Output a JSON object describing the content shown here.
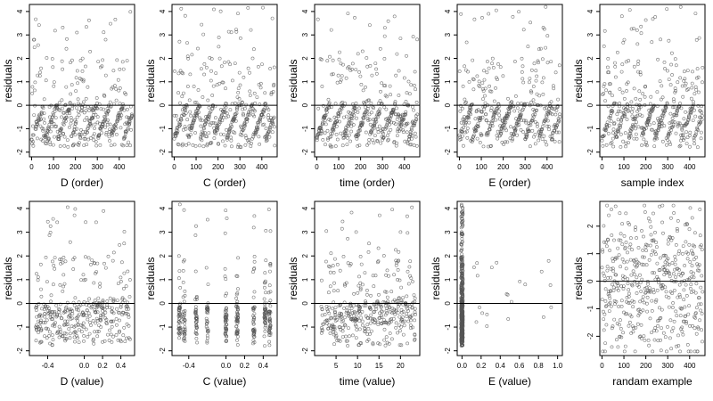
{
  "chart_data": [
    {
      "type": "scatter",
      "xlabel": "D (order)",
      "ylabel": "residuals",
      "xlim": [
        -10,
        470
      ],
      "ylim": [
        -2.2,
        4.3
      ],
      "xticks": [
        "0",
        "100",
        "200",
        "300",
        "400"
      ],
      "xtick_values": [
        0,
        100,
        200,
        300,
        400
      ],
      "yticks": [
        "-2",
        "-1",
        "0",
        "1",
        "2",
        "3",
        "4"
      ],
      "ytick_values": [
        -2,
        -1,
        0,
        1,
        2,
        3,
        4
      ],
      "hline": 0,
      "pattern": "ordered",
      "seed": 11,
      "n": 460
    },
    {
      "type": "scatter",
      "xlabel": "C (order)",
      "ylabel": "residuals",
      "xlim": [
        -10,
        470
      ],
      "ylim": [
        -2.2,
        4.3
      ],
      "xticks": [
        "0",
        "100",
        "200",
        "300",
        "400"
      ],
      "xtick_values": [
        0,
        100,
        200,
        300,
        400
      ],
      "yticks": [
        "-2",
        "-1",
        "0",
        "1",
        "2",
        "3",
        "4"
      ],
      "ytick_values": [
        -2,
        -1,
        0,
        1,
        2,
        3,
        4
      ],
      "hline": 0,
      "pattern": "ordered",
      "seed": 23,
      "n": 460
    },
    {
      "type": "scatter",
      "xlabel": "time (order)",
      "ylabel": "residuals",
      "xlim": [
        -10,
        470
      ],
      "ylim": [
        -2.2,
        4.3
      ],
      "xticks": [
        "0",
        "100",
        "200",
        "300",
        "400"
      ],
      "xtick_values": [
        0,
        100,
        200,
        300,
        400
      ],
      "yticks": [
        "-2",
        "-1",
        "0",
        "1",
        "2",
        "3",
        "4"
      ],
      "ytick_values": [
        -2,
        -1,
        0,
        1,
        2,
        3,
        4
      ],
      "hline": 0,
      "pattern": "ordered",
      "seed": 37,
      "n": 460
    },
    {
      "type": "scatter",
      "xlabel": "E (order)",
      "ylabel": "residuals",
      "xlim": [
        -10,
        470
      ],
      "ylim": [
        -2.2,
        4.3
      ],
      "xticks": [
        "0",
        "100",
        "200",
        "300",
        "400"
      ],
      "xtick_values": [
        0,
        100,
        200,
        300,
        400
      ],
      "yticks": [
        "-2",
        "-1",
        "0",
        "1",
        "2",
        "3",
        "4"
      ],
      "ytick_values": [
        -2,
        -1,
        0,
        1,
        2,
        3,
        4
      ],
      "hline": 0,
      "pattern": "ordered",
      "seed": 41,
      "n": 460
    },
    {
      "type": "scatter",
      "xlabel": "sample index",
      "ylabel": "residuals",
      "xlim": [
        -10,
        470
      ],
      "ylim": [
        -2.2,
        4.3
      ],
      "xticks": [
        "0",
        "100",
        "200",
        "300",
        "400"
      ],
      "xtick_values": [
        0,
        100,
        200,
        300,
        400
      ],
      "yticks": [
        "-2",
        "-1",
        "0",
        "1",
        "2",
        "3",
        "4"
      ],
      "ytick_values": [
        -2,
        -1,
        0,
        1,
        2,
        3,
        4
      ],
      "hline": 0,
      "pattern": "ordered",
      "seed": 53,
      "n": 460
    },
    {
      "type": "scatter",
      "xlabel": "D (value)",
      "ylabel": "residuals",
      "xlim": [
        -0.6,
        0.55
      ],
      "ylim": [
        -2.2,
        4.3
      ],
      "xticks": [
        "-0.4",
        "0.0",
        "0.2",
        "0.4"
      ],
      "xtick_values": [
        -0.4,
        0,
        0.2,
        0.4
      ],
      "yticks": [
        "-2",
        "-1",
        "0",
        "1",
        "2",
        "3",
        "4"
      ],
      "ytick_values": [
        -2,
        -1,
        0,
        1,
        2,
        3,
        4
      ],
      "hline": 0,
      "pattern": "value-spread",
      "seed": 61,
      "n": 380
    },
    {
      "type": "scatter",
      "xlabel": "C (value)",
      "ylabel": "residuals",
      "xlim": [
        -0.58,
        0.55
      ],
      "ylim": [
        -2.2,
        4.3
      ],
      "xticks": [
        "-0.4",
        "0.0",
        "0.2",
        "0.4"
      ],
      "xtick_values": [
        -0.4,
        0,
        0.2,
        0.4
      ],
      "yticks": [
        "-2",
        "-1",
        "0",
        "1",
        "2",
        "3",
        "4"
      ],
      "ytick_values": [
        -2,
        -1,
        0,
        1,
        2,
        3,
        4
      ],
      "hline": 0,
      "pattern": "value-columns",
      "columns": [
        -0.5,
        -0.45,
        -0.32,
        -0.2,
        0.0,
        0.12,
        0.3,
        0.42,
        0.47
      ],
      "seed": 71,
      "n": 380
    },
    {
      "type": "scatter",
      "xlabel": "time (value)",
      "ylabel": "residuals",
      "xlim": [
        0,
        24.5
      ],
      "ylim": [
        -2.2,
        4.3
      ],
      "xticks": [
        "5",
        "10",
        "15",
        "20"
      ],
      "xtick_values": [
        5,
        10,
        15,
        20
      ],
      "yticks": [
        "-2",
        "-1",
        "0",
        "1",
        "2",
        "3",
        "4"
      ],
      "ytick_values": [
        -2,
        -1,
        0,
        1,
        2,
        3,
        4
      ],
      "hline": 0,
      "pattern": "value-spread",
      "seed": 83,
      "n": 400
    },
    {
      "type": "scatter",
      "xlabel": "E (value)",
      "ylabel": "residuals",
      "xlim": [
        -0.05,
        1.05
      ],
      "ylim": [
        -2.2,
        4.3
      ],
      "xticks": [
        "0.0",
        "0.2",
        "0.4",
        "0.6",
        "0.8",
        "1.0"
      ],
      "xtick_values": [
        0,
        0.2,
        0.4,
        0.6,
        0.8,
        1.0
      ],
      "yticks": [
        "-2",
        "-1",
        "0",
        "1",
        "2",
        "3",
        "4"
      ],
      "ytick_values": [
        -2,
        -1,
        0,
        1,
        2,
        3,
        4
      ],
      "hline": 0,
      "pattern": "value-zero",
      "seed": 97,
      "n": 420
    },
    {
      "type": "scatter",
      "xlabel": "randam example",
      "ylabel": "residuals",
      "xlim": [
        -10,
        470
      ],
      "ylim": [
        -2.7,
        2.9
      ],
      "xticks": [
        "0",
        "100",
        "200",
        "300",
        "400"
      ],
      "xtick_values": [
        0,
        100,
        200,
        300,
        400
      ],
      "yticks": [
        "-2",
        "-1",
        "0",
        "1",
        "2"
      ],
      "ytick_values": [
        -2,
        -1,
        0,
        1,
        2
      ],
      "hline": 0,
      "pattern": "random",
      "seed": 101,
      "n": 460
    }
  ]
}
